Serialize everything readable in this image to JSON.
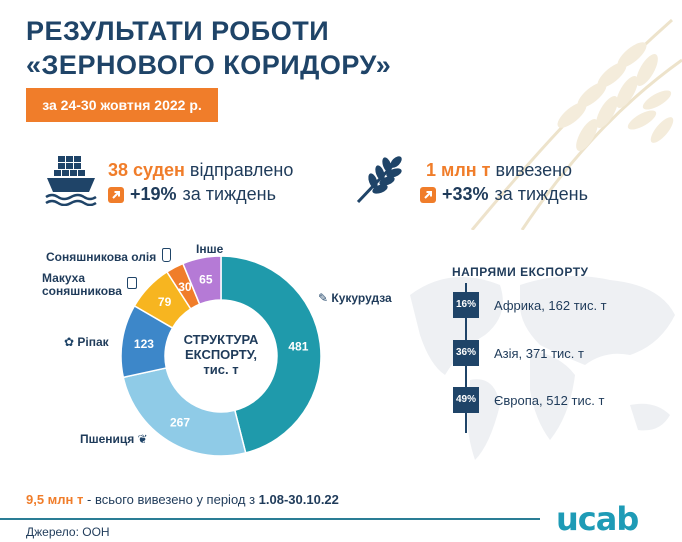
{
  "title": {
    "line1": "РЕЗУЛЬТАТИ РОБОТИ",
    "line2": "«ЗЕРНОВОГО КОРИДОРУ»"
  },
  "date_badge": "за 24-30 жовтня 2022 р.",
  "stats": {
    "ships": {
      "value": "38 суден",
      "label": " відправлено",
      "pct": "+19%",
      "pct_label": "за тиждень",
      "icon": "ship-icon"
    },
    "grain": {
      "value": "1 млн т",
      "label": " вивезено",
      "pct": "+33%",
      "pct_label": "за тиждень",
      "icon": "wheat-icon"
    }
  },
  "chart_data": {
    "type": "pie",
    "title": "СТРУКТУРА ЕКСПОРТУ, тис. т",
    "slices": [
      {
        "label": "Кукурудза",
        "value": 481,
        "color": "#1f9aab"
      },
      {
        "label": "Пшениця",
        "value": 267,
        "color": "#8fcbe7"
      },
      {
        "label": "Ріпак",
        "value": 123,
        "color": "#3d87c9"
      },
      {
        "label": "Макуха соняшникова",
        "value": 79,
        "color": "#f7b520"
      },
      {
        "label": "Соняшникова олія",
        "value": 30,
        "color": "#f07d2a"
      },
      {
        "label": "Інше",
        "value": 65,
        "color": "#b57ad6"
      }
    ]
  },
  "center_label": {
    "line1": "СТРУКТУРА",
    "line2": "ЕКСПОРТУ,",
    "line3": "тис. т"
  },
  "directions": {
    "title": "НАПРЯМИ ЕКСПОРТУ",
    "items": [
      {
        "pct": "16%",
        "label": "Африка, 162 тис. т"
      },
      {
        "pct": "36%",
        "label": "Азія, 371 тис. т"
      },
      {
        "pct": "49%",
        "label": "Європа, 512 тис. т"
      }
    ]
  },
  "total": {
    "value": "9,5 млн т",
    "text": " - всього вивезено у період з ",
    "period": "1.08-30.10.22"
  },
  "source": "Джерело: ООН",
  "logo": "ucab",
  "colors": {
    "accent": "#f07d2a",
    "navy": "#1f4468",
    "teal": "#1e9bb6"
  }
}
